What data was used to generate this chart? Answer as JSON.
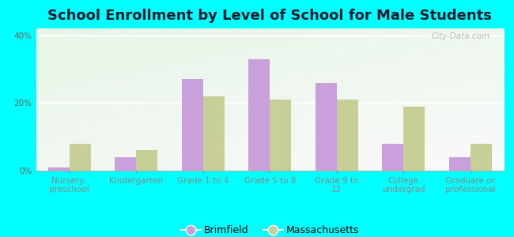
{
  "title": "School Enrollment by Level of School for Male Students",
  "categories": [
    "Nursery,\npreschool",
    "Kindergarten",
    "Grade 1 to 4",
    "Grade 5 to 8",
    "Grade 9 to\n12",
    "College\nundergrad",
    "Graduate or\nprofessional"
  ],
  "brimfield": [
    1.0,
    4.0,
    27.0,
    33.0,
    26.0,
    8.0,
    4.0
  ],
  "massachusetts": [
    8.0,
    6.0,
    22.0,
    21.0,
    21.0,
    19.0,
    8.0
  ],
  "brimfield_color": "#c9a0dc",
  "massachusetts_color": "#c8cf96",
  "background_color": "#00ffff",
  "title_fontsize": 13,
  "tick_fontsize": 7.5,
  "legend_fontsize": 9,
  "ylim": [
    0,
    42
  ],
  "yticks": [
    0,
    20,
    40
  ],
  "ytick_labels": [
    "0%",
    "20%",
    "40%"
  ],
  "watermark": "City-Data.com"
}
